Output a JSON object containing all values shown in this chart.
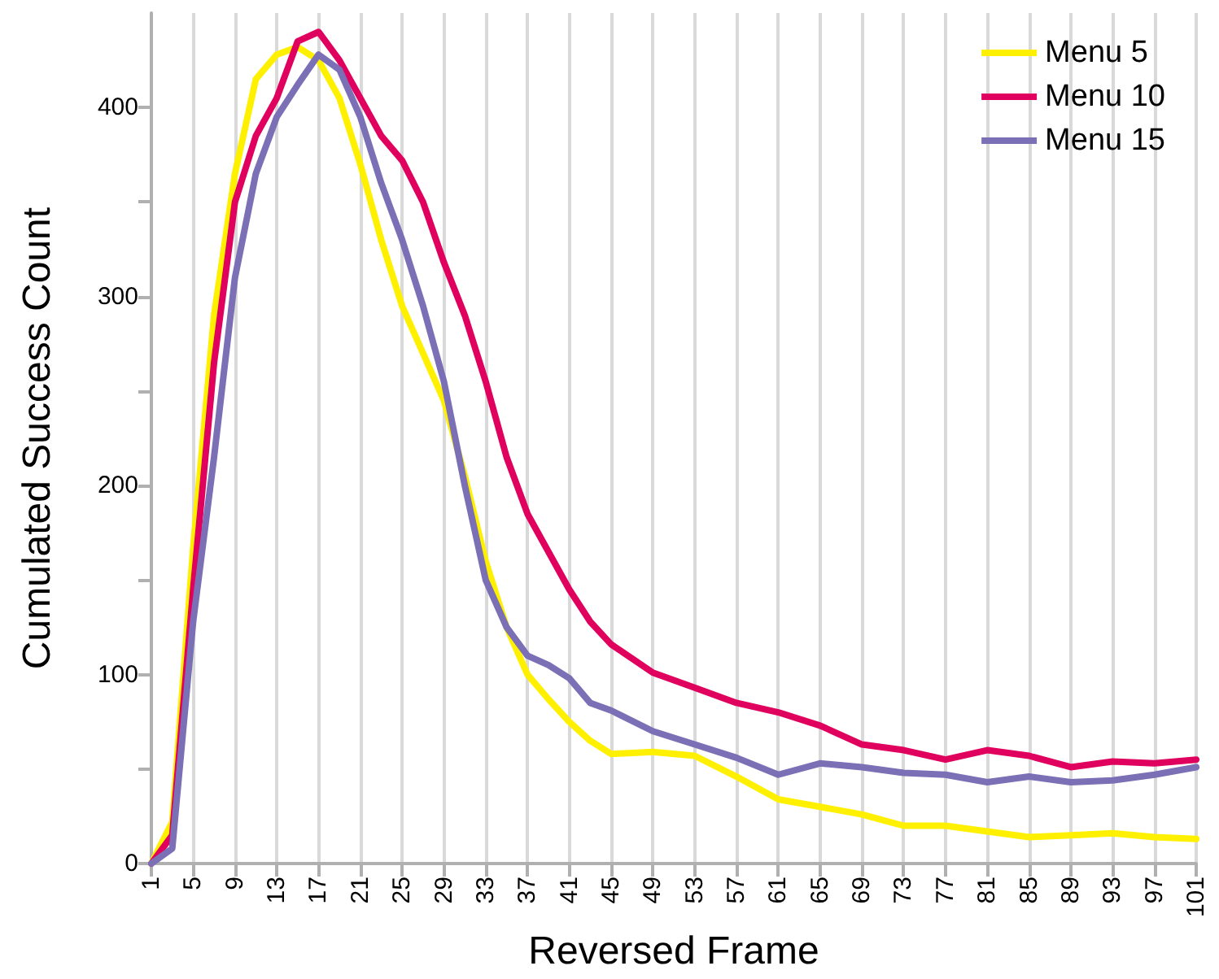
{
  "chart_data": {
    "type": "line",
    "xlabel": "Reversed Frame",
    "ylabel": "Cumulated Success Count",
    "x": [
      1,
      3,
      5,
      7,
      9,
      11,
      13,
      15,
      17,
      19,
      21,
      23,
      25,
      27,
      29,
      31,
      33,
      35,
      37,
      39,
      41,
      43,
      45,
      49,
      53,
      57,
      61,
      65,
      69,
      73,
      77,
      81,
      85,
      89,
      93,
      97,
      101
    ],
    "series": [
      {
        "name": "Menu 5",
        "color": "#fff000",
        "values": [
          0,
          22,
          167,
          290,
          365,
          415,
          428,
          432,
          425,
          405,
          370,
          330,
          295,
          270,
          245,
          205,
          160,
          125,
          100,
          87,
          75,
          65,
          58,
          59,
          57,
          46,
          34,
          30,
          26,
          20,
          20,
          17,
          14,
          15,
          16,
          14,
          13
        ]
      },
      {
        "name": "Menu 10",
        "color": "#e0005e",
        "values": [
          0,
          15,
          145,
          265,
          350,
          385,
          405,
          435,
          440,
          425,
          405,
          385,
          372,
          350,
          318,
          290,
          255,
          215,
          185,
          165,
          145,
          128,
          116,
          101,
          93,
          85,
          80,
          73,
          63,
          60,
          55,
          60,
          57,
          51,
          54,
          53,
          55
        ]
      },
      {
        "name": "Menu 15",
        "color": "#7b6fb5",
        "values": [
          0,
          8,
          128,
          215,
          310,
          365,
          395,
          412,
          428,
          420,
          395,
          360,
          330,
          295,
          255,
          200,
          150,
          125,
          110,
          105,
          98,
          85,
          81,
          70,
          63,
          56,
          47,
          53,
          51,
          48,
          47,
          43,
          46,
          43,
          44,
          47,
          51
        ]
      }
    ],
    "xlim": [
      1,
      101
    ],
    "xticks": [
      1,
      5,
      9,
      13,
      17,
      21,
      25,
      29,
      33,
      37,
      41,
      45,
      49,
      53,
      57,
      61,
      65,
      69,
      73,
      77,
      81,
      85,
      89,
      93,
      97,
      101
    ],
    "ylim": [
      0,
      450
    ],
    "yticks": [
      0,
      {
        "value": 50,
        "label": null
      },
      100,
      {
        "value": 150,
        "label": null
      },
      200,
      {
        "value": 250,
        "label": null
      },
      300,
      {
        "value": 350,
        "label": null
      },
      400
    ],
    "grid": "x",
    "legend": "top right",
    "marker": "none",
    "line_style": "solid"
  }
}
